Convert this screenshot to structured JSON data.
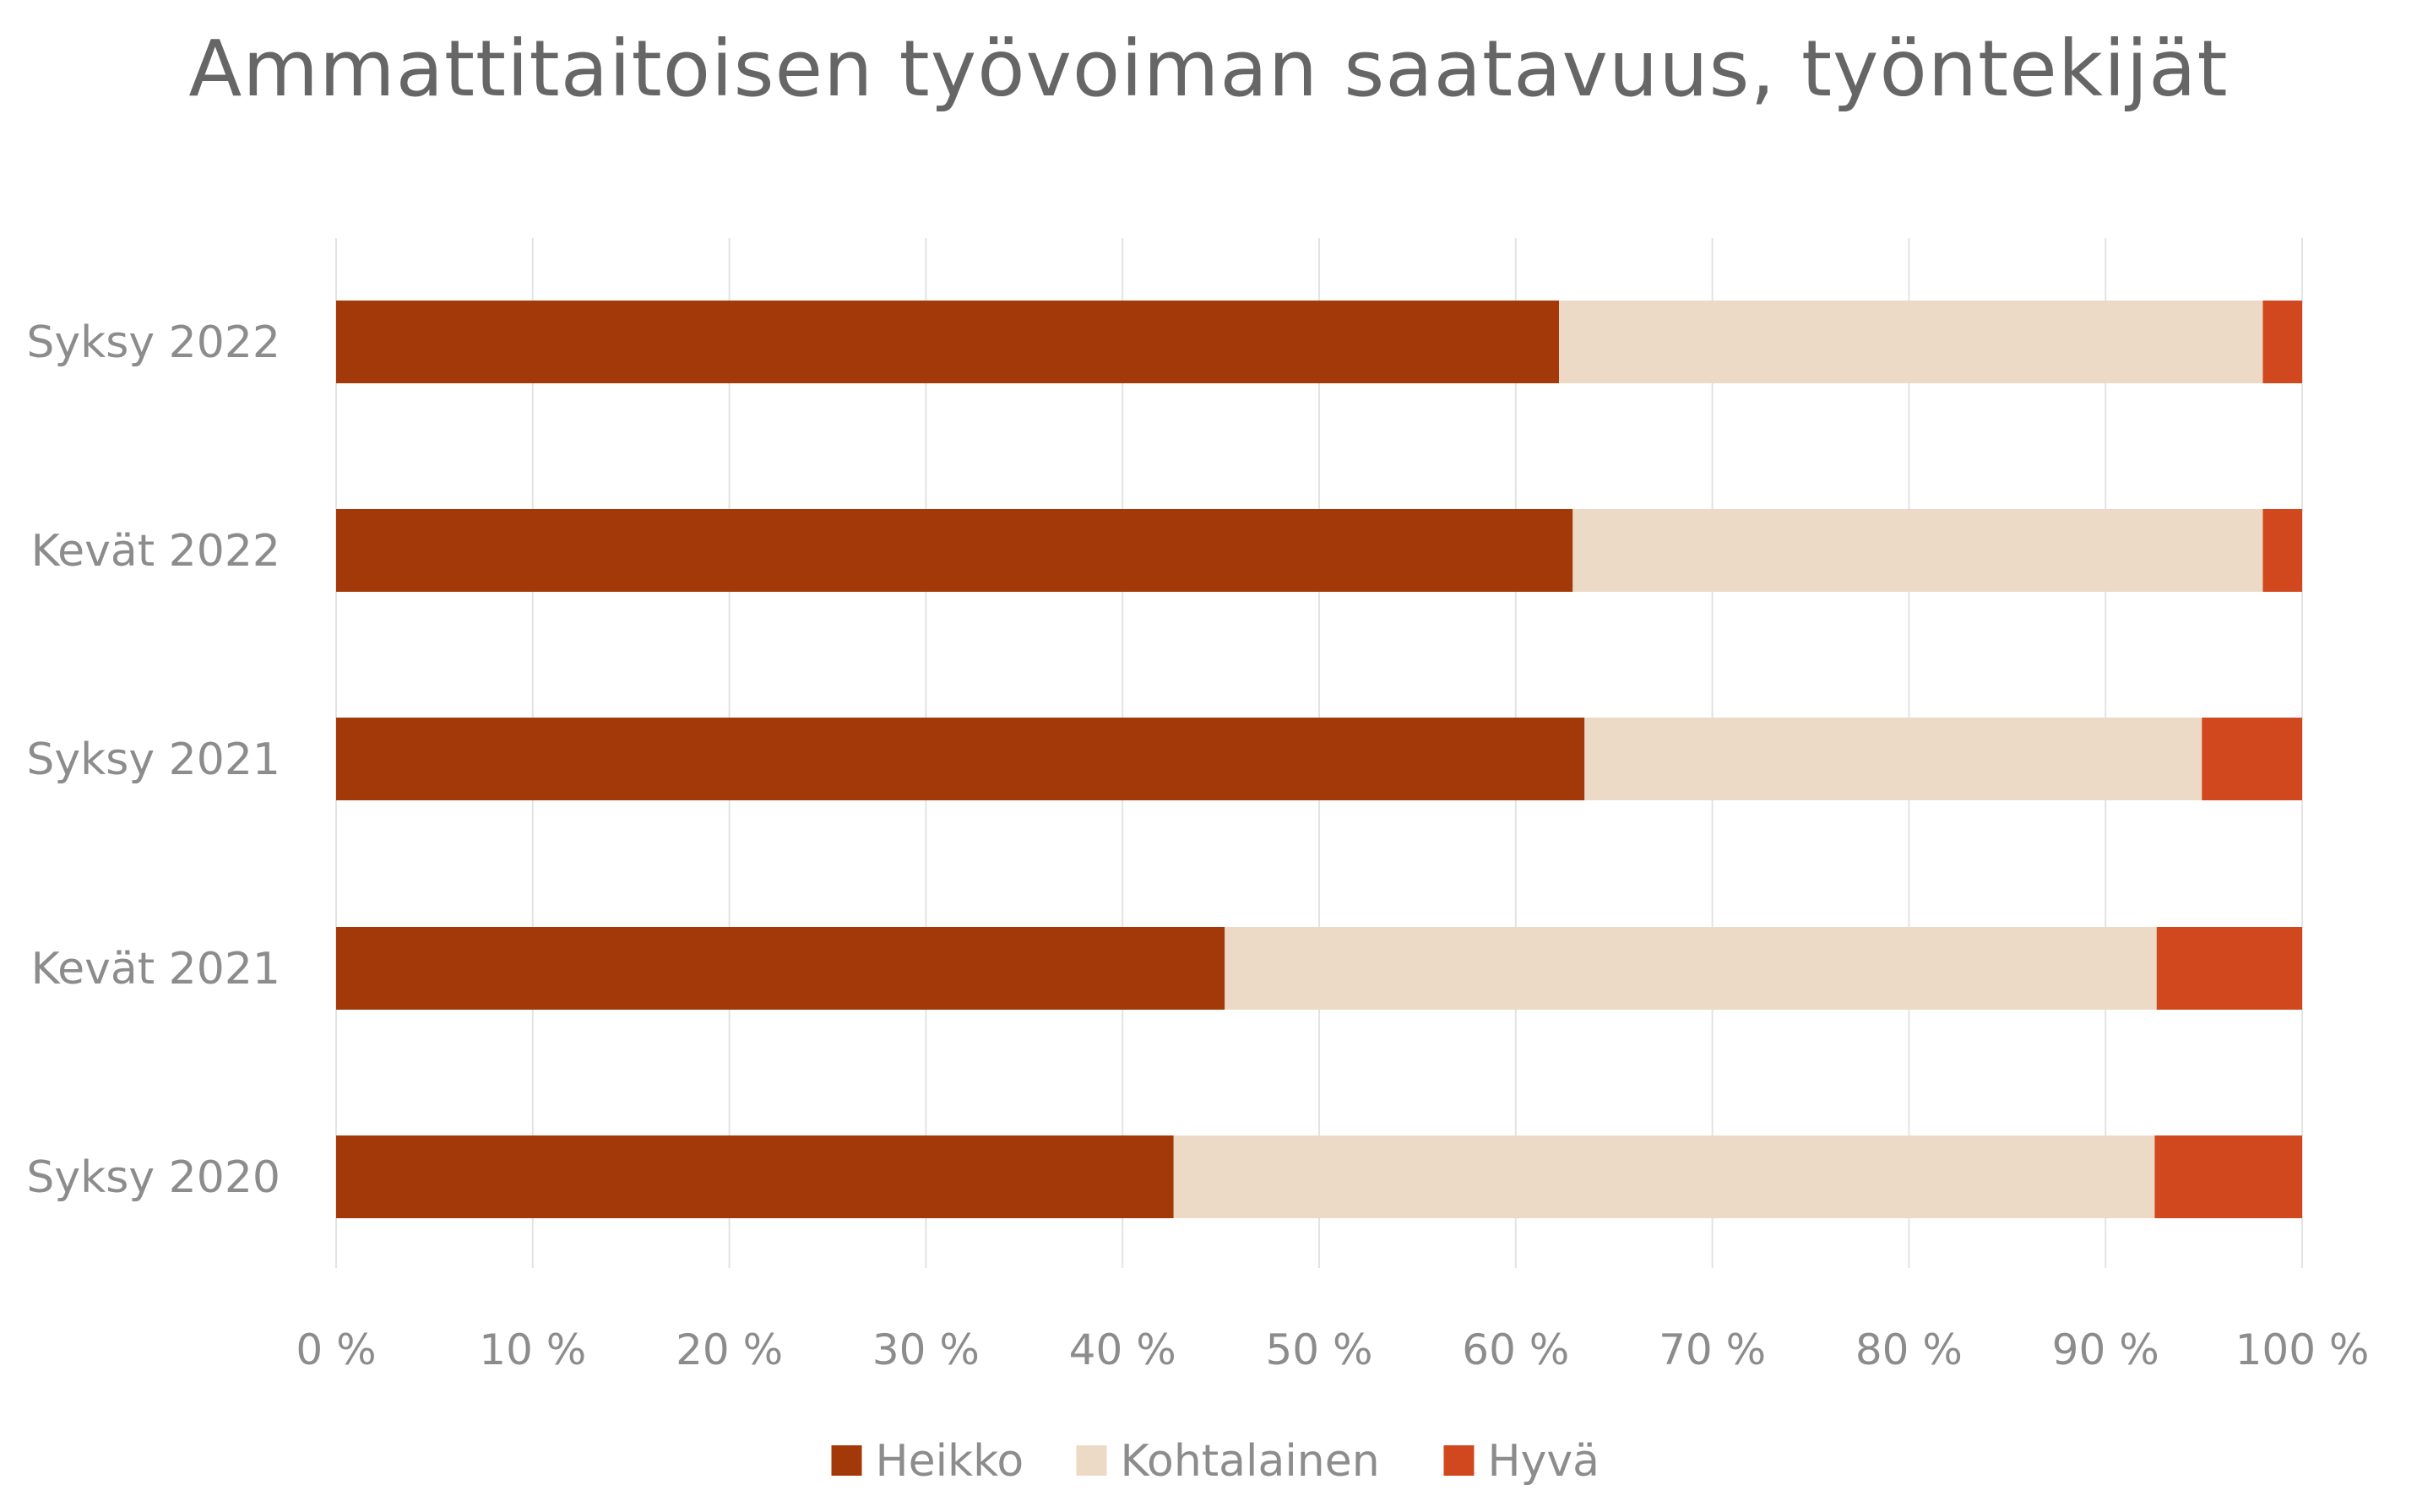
{
  "chart_data": {
    "type": "bar",
    "orientation": "horizontal",
    "stacked": "percent",
    "title": "Ammattitaitoisen työvoiman saatavuus, työntekijät",
    "categories": [
      "Syksy 2022",
      "Kevät 2022",
      "Syksy 2021",
      "Kevät 2021",
      "Syksy 2020"
    ],
    "series": [
      {
        "name": "Heikko",
        "color": "#A33808",
        "values": [
          62.2,
          62.9,
          63.5,
          45.2,
          42.6
        ]
      },
      {
        "name": "Kohtalainen",
        "color": "#EDDAC6",
        "values": [
          35.8,
          35.1,
          31.4,
          47.4,
          49.9
        ]
      },
      {
        "name": "Hyvä",
        "color": "#D1471E",
        "values": [
          2.0,
          2.0,
          5.1,
          7.4,
          7.5
        ]
      }
    ],
    "xlim": [
      0,
      100
    ],
    "x_ticks": [
      "0 %",
      "10 %",
      "20 %",
      "30 %",
      "40 %",
      "50 %",
      "60 %",
      "70 %",
      "80 %",
      "90 %",
      "100 %"
    ],
    "xlabel": "",
    "ylabel": "",
    "grid": "vertical",
    "legend": "bottom"
  }
}
